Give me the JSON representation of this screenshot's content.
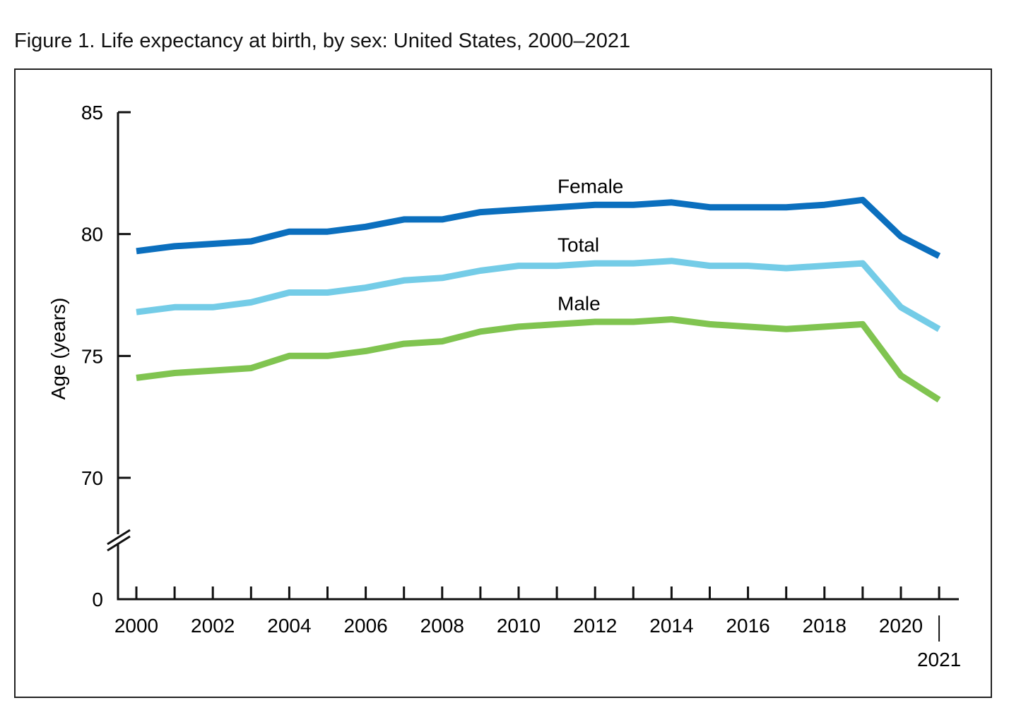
{
  "figure_title": "Figure 1. Life expectancy at birth, by sex: United States, 2000–2021",
  "chart_data": {
    "type": "line",
    "title": "Figure 1. Life expectancy at birth, by sex: United States, 2000–2021",
    "xlabel": "",
    "ylabel": "Age (years)",
    "x": [
      2000,
      2001,
      2002,
      2003,
      2004,
      2005,
      2006,
      2007,
      2008,
      2009,
      2010,
      2011,
      2012,
      2013,
      2014,
      2015,
      2016,
      2017,
      2018,
      2019,
      2020,
      2021
    ],
    "x_tick_labels": [
      "2000",
      "2002",
      "2004",
      "2006",
      "2008",
      "2010",
      "2012",
      "2014",
      "2016",
      "2018",
      "2020"
    ],
    "x_tick_label_years": [
      2000,
      2002,
      2004,
      2006,
      2008,
      2010,
      2012,
      2014,
      2016,
      2018,
      2020
    ],
    "x_extra_label": "2021",
    "x_extra_label_year": 2021,
    "y_ticks": [
      85,
      80,
      75,
      70
    ],
    "y_tick_labels": [
      "85",
      "80",
      "75",
      "70"
    ],
    "y_zero_label": "0",
    "ylim": [
      70,
      85
    ],
    "axis_break": true,
    "grid": false,
    "series": [
      {
        "name": "Female",
        "color": "#0B6FBE",
        "values": [
          79.3,
          79.5,
          79.6,
          79.7,
          80.1,
          80.1,
          80.3,
          80.6,
          80.6,
          80.9,
          81.0,
          81.1,
          81.2,
          81.2,
          81.3,
          81.1,
          81.1,
          81.1,
          81.2,
          81.4,
          79.9,
          79.1
        ]
      },
      {
        "name": "Total",
        "color": "#74CCE7",
        "values": [
          76.8,
          77.0,
          77.0,
          77.2,
          77.6,
          77.6,
          77.8,
          78.1,
          78.2,
          78.5,
          78.7,
          78.7,
          78.8,
          78.8,
          78.9,
          78.7,
          78.7,
          78.6,
          78.7,
          78.8,
          77.0,
          76.1
        ]
      },
      {
        "name": "Male",
        "color": "#80C450",
        "values": [
          74.1,
          74.3,
          74.4,
          74.5,
          75.0,
          75.0,
          75.2,
          75.5,
          75.6,
          76.0,
          76.2,
          76.3,
          76.4,
          76.4,
          76.5,
          76.3,
          76.2,
          76.1,
          76.2,
          76.3,
          74.2,
          73.2
        ]
      }
    ]
  }
}
